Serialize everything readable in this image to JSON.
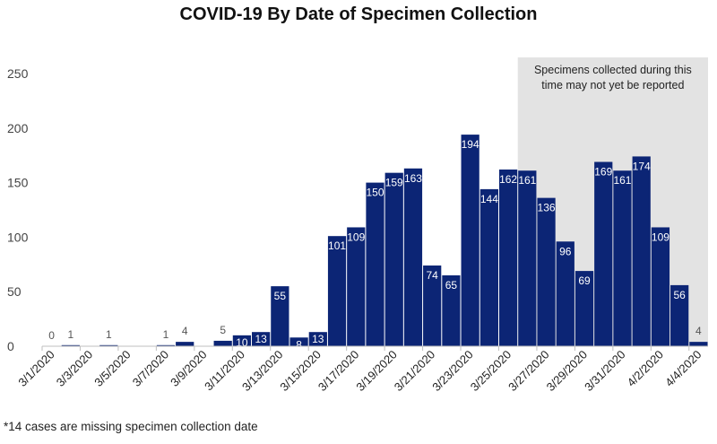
{
  "title": "COVID-19 By Date of Specimen Collection",
  "footnote": "*14 cases are missing specimen collection date",
  "colors": {
    "bar": "#0c2575",
    "shade": "#e3e3e3",
    "axis": "#bfbfbf"
  },
  "chart_data": {
    "type": "bar",
    "title": "COVID-19 By Date of Specimen Collection",
    "xlabel": "",
    "ylabel": "",
    "ylim": [
      0,
      250
    ],
    "yticks": [
      0,
      50,
      100,
      150,
      200,
      250
    ],
    "grid": false,
    "categories": [
      "3/1/2020",
      "3/2/2020",
      "3/3/2020",
      "3/4/2020",
      "3/5/2020",
      "3/6/2020",
      "3/7/2020",
      "3/8/2020",
      "3/9/2020",
      "3/10/2020",
      "3/11/2020",
      "3/12/2020",
      "3/13/2020",
      "3/14/2020",
      "3/15/2020",
      "3/16/2020",
      "3/17/2020",
      "3/18/2020",
      "3/19/2020",
      "3/20/2020",
      "3/21/2020",
      "3/22/2020",
      "3/23/2020",
      "3/24/2020",
      "3/25/2020",
      "3/26/2020",
      "3/27/2020",
      "3/28/2020",
      "3/29/2020",
      "3/30/2020",
      "3/31/2020",
      "4/1/2020",
      "4/2/2020",
      "4/3/2020",
      "4/4/2020"
    ],
    "tick_labels": [
      "3/1/2020",
      "3/3/2020",
      "3/5/2020",
      "3/7/2020",
      "3/9/2020",
      "3/11/2020",
      "3/13/2020",
      "3/15/2020",
      "3/17/2020",
      "3/19/2020",
      "3/21/2020",
      "3/23/2020",
      "3/25/2020",
      "3/27/2020",
      "3/29/2020",
      "3/31/2020",
      "4/2/2020",
      "4/4/2020"
    ],
    "values": [
      0,
      1,
      null,
      1,
      null,
      null,
      1,
      4,
      null,
      5,
      10,
      13,
      55,
      8,
      13,
      101,
      109,
      150,
      159,
      163,
      74,
      65,
      194,
      144,
      162,
      161,
      136,
      96,
      69,
      169,
      161,
      174,
      109,
      56,
      4
    ],
    "labels": [
      "0",
      "1",
      "",
      "1",
      "",
      "",
      "1",
      "4",
      "",
      "5",
      "10",
      "13",
      "55",
      "8",
      "13",
      "101",
      "109",
      "150",
      "159",
      "163",
      "74",
      "65",
      "194",
      "144",
      "162",
      "161",
      "136",
      "96",
      "69",
      "169",
      "161",
      "174",
      "109",
      "56",
      "4"
    ],
    "shaded_region": {
      "from": "3/26/2020",
      "to": "4/4/2020",
      "text_lines": [
        "Specimens collected during this",
        "time may not yet be reported"
      ]
    }
  }
}
